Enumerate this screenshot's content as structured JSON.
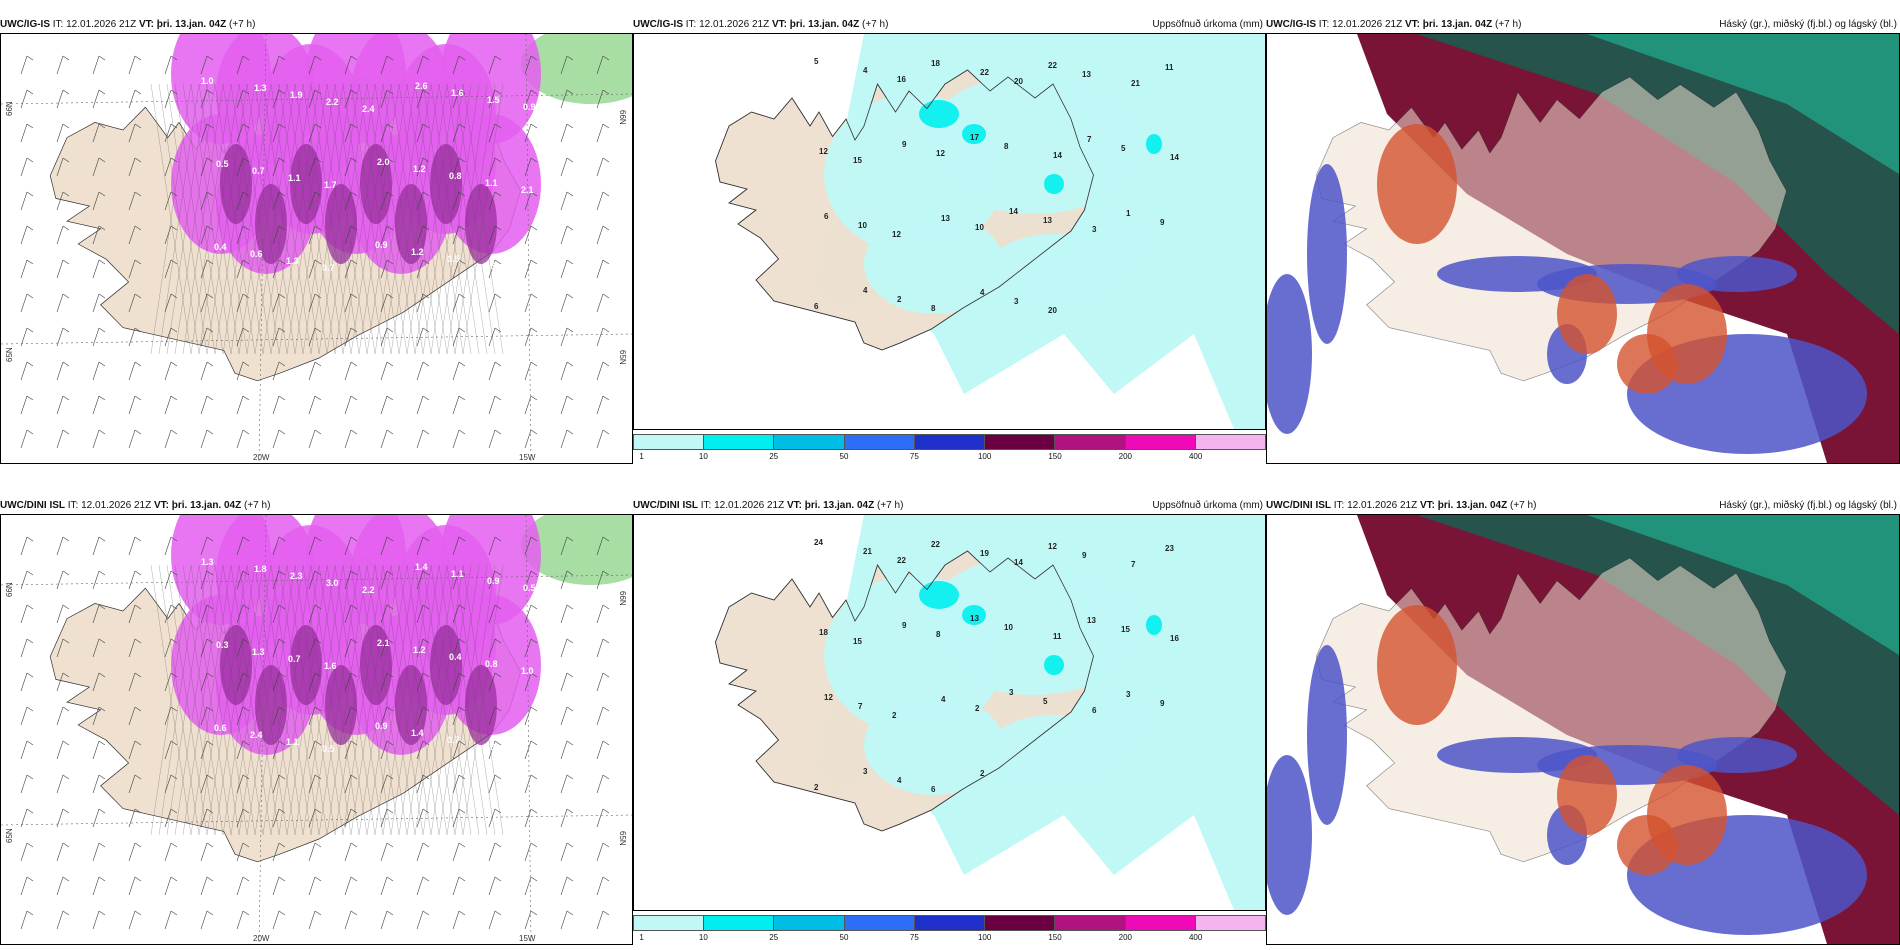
{
  "precip_colors": [
    "#bff8f5",
    "#00eef0",
    "#00bde6",
    "#2c6ff5",
    "#1f2fc9",
    "#6a0042",
    "#b0127f",
    "#ee0ab7",
    "#f5b3f0"
  ],
  "legend_labels": [
    "1",
    "10",
    "25",
    "50",
    "75",
    "100",
    "150",
    "200",
    "400"
  ],
  "lon_labels": [
    "20W",
    "15W"
  ],
  "lat_labels": [
    "66N",
    "65N"
  ],
  "rows": [
    {
      "left": {
        "model": "UWC/IG-IS",
        "it": "IT: 12.01.2026 21Z",
        "vt_label": "VT:",
        "vt": "þri. 13.jan. 04Z",
        "lead": "(+7 h)"
      },
      "mid": {
        "model": "UWC/IG-IS",
        "it": "IT: 12.01.2026 21Z",
        "vt_label": "VT:",
        "vt": "þri. 13.jan. 04Z",
        "lead": "(+7 h)",
        "product": "Uppsöfnuð úrkoma (mm)"
      },
      "right": {
        "model": "UWC/IG-IS",
        "it": "IT: 12.01.2026 21Z",
        "vt_label": "VT:",
        "vt": "þri. 13.jan. 04Z",
        "lead": "(+7 h)",
        "product": "Háský (gr.), miðský (fj.bl.) og lágský (bl.)"
      },
      "snow_values": [
        "1.0",
        "1.3",
        "1.9",
        "2.2",
        "2.4",
        "2.6",
        "1.6",
        "1.5",
        "0.9",
        "0.5",
        "0.7",
        "1.1",
        "1.7",
        "2.0",
        "1.2",
        "0.8",
        "1.1",
        "2.1",
        "0.4",
        "0.6",
        "1.3",
        "0.7",
        "0.9",
        "1.2",
        "0.5",
        "0.8"
      ],
      "precip_values": [
        "5",
        "4",
        "16",
        "18",
        "22",
        "20",
        "22",
        "13",
        "21",
        "11",
        "12",
        "15",
        "9",
        "12",
        "17",
        "8",
        "14",
        "7",
        "5",
        "14",
        "6",
        "10",
        "12",
        "13",
        "10",
        "14",
        "13",
        "3",
        "1",
        "9",
        "6",
        "4",
        "2",
        "8",
        "4",
        "3",
        "20"
      ]
    },
    {
      "left": {
        "model": "UWC/DINI ISL",
        "it": "IT: 12.01.2026 21Z",
        "vt_label": "VT:",
        "vt": "þri. 13.jan. 04Z",
        "lead": "(+7 h)"
      },
      "mid": {
        "model": "UWC/DINI ISL",
        "it": "IT: 12.01.2026 21Z",
        "vt_label": "VT:",
        "vt": "þri. 13.jan. 04Z",
        "lead": "(+7 h)",
        "product": "Uppsöfnuð úrkoma (mm)"
      },
      "right": {
        "model": "UWC/DINI ISL",
        "it": "IT: 12.01.2026 21Z",
        "vt_label": "VT:",
        "vt": "þri. 13.jan. 04Z",
        "lead": "(+7 h)",
        "product": "Háský (gr.), miðský (fj.bl.) og lágský (bl.)"
      },
      "snow_values": [
        "1.3",
        "1.8",
        "2.3",
        "3.0",
        "2.2",
        "1.4",
        "1.1",
        "0.9",
        "0.5",
        "0.3",
        "1.3",
        "0.7",
        "1.6",
        "2.1",
        "1.2",
        "0.4",
        "0.8",
        "1.0",
        "0.6",
        "2.4",
        "1.1",
        "0.5",
        "0.9",
        "1.4",
        "0.7",
        "0.3"
      ],
      "precip_values": [
        "24",
        "21",
        "22",
        "22",
        "19",
        "14",
        "12",
        "9",
        "7",
        "23",
        "18",
        "15",
        "9",
        "8",
        "13",
        "10",
        "11",
        "13",
        "15",
        "16",
        "12",
        "7",
        "2",
        "4",
        "2",
        "3",
        "5",
        "6",
        "3",
        "9",
        "2",
        "3",
        "4",
        "6",
        "2"
      ]
    }
  ]
}
